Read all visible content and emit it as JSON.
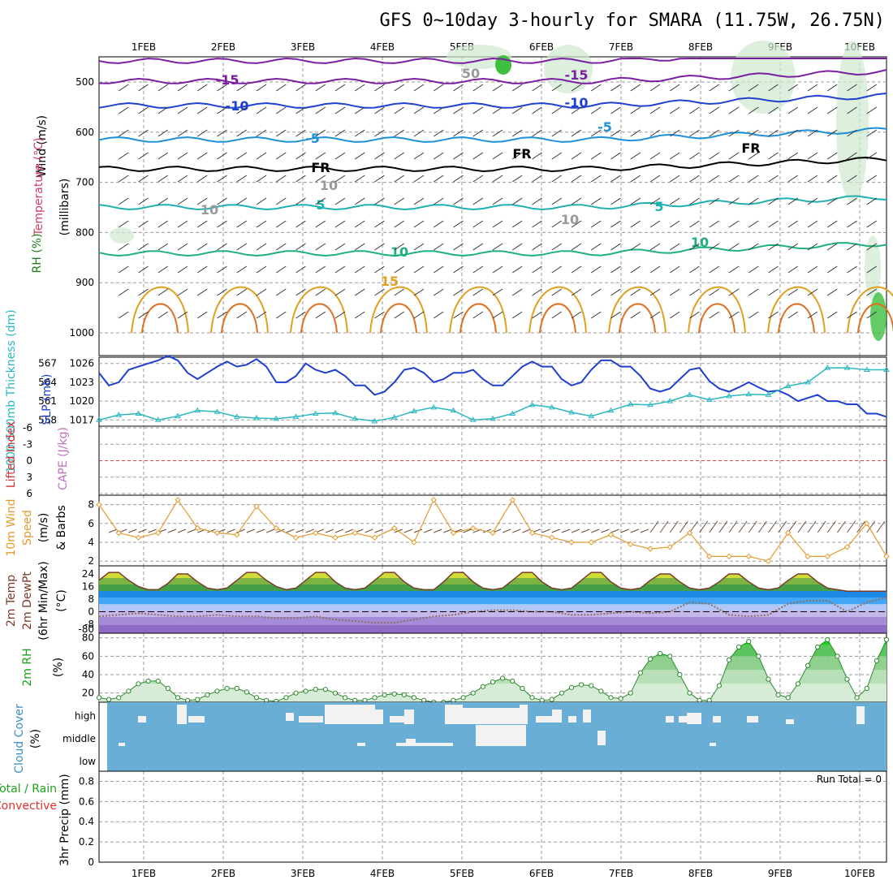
{
  "title": "GFS 0~10day 3-hourly for SMARA (11.75W, 26.75N)",
  "colors": {
    "grid": "#9a9a9a",
    "slp": "#1f3fd0",
    "thickness": "#2cb8c0",
    "wind_speed": "#e39a2e",
    "barb": "#6b4a3a",
    "temp_line": "#7a3a2a",
    "rh_line": "#2c8a2c",
    "cloud_fill": "#6aaed6",
    "cloud_clear": "#f2f2f2",
    "lifted_zero": "#e04040"
  },
  "date_labels": [
    "1FEB",
    "2FEB",
    "3FEB",
    "4FEB",
    "5FEB",
    "6FEB",
    "7FEB",
    "8FEB",
    "9FEB",
    "10FEB"
  ],
  "panels": {
    "upper_air": {
      "ylabel_lines": [
        "Wind (m/s)",
        "Temperature (°C)",
        "(millibars)",
        "RH (%)"
      ],
      "ticks": [
        "500",
        "600",
        "700",
        "800",
        "900",
        "1000"
      ],
      "contour_labels": [
        {
          "text": "-15",
          "color": "#7b1fa2"
        },
        {
          "text": "-15",
          "color": "#7b1fa2"
        },
        {
          "text": "-10",
          "color": "#2040d0"
        },
        {
          "text": "-10",
          "color": "#2040d0"
        },
        {
          "text": "-5",
          "color": "#1e90d8"
        },
        {
          "text": "-5",
          "color": "#1e90d8"
        },
        {
          "text": "FR",
          "color": "#000000"
        },
        {
          "text": "FR",
          "color": "#000000"
        },
        {
          "text": "FR",
          "color": "#000000"
        },
        {
          "text": "5",
          "color": "#20b0b0"
        },
        {
          "text": "5",
          "color": "#20b0b0"
        },
        {
          "text": "10",
          "color": "#20b080"
        },
        {
          "text": "10",
          "color": "#20b080"
        },
        {
          "text": "15",
          "color": "#e0a020"
        },
        {
          "text": "10",
          "color": "#999999"
        },
        {
          "text": "10",
          "color": "#999999"
        },
        {
          "text": "10",
          "color": "#999999"
        },
        {
          "text": "50",
          "color": "#999999"
        }
      ]
    },
    "pressure": {
      "ylabel_left": "1000-500mb Thickness (dm)",
      "ylabel_right": "SLP (mb)",
      "left_ticks": [
        "567",
        "564",
        "561",
        "558"
      ],
      "right_ticks": [
        "1026",
        "1023",
        "1020",
        "1017"
      ]
    },
    "stability": {
      "ylabel_left": "Lifted Index",
      "ylabel_right": "CAPE (J/kg)",
      "left_ticks": [
        "-6",
        "-3",
        "0",
        "3",
        "6"
      ]
    },
    "wind10m": {
      "ylabel_lines": [
        "10m Wind",
        "Speed",
        "(m/s)",
        "& Barbs"
      ],
      "ticks": [
        "8",
        "6",
        "4",
        "2"
      ]
    },
    "temp2m": {
      "ylabel_lines": [
        "2m Temp",
        "2m DewPt",
        "(6hr Min/Max)",
        "(°C)"
      ],
      "ticks": [
        "24",
        "16",
        "8",
        "0",
        "-8",
        "-80"
      ]
    },
    "rh2m": {
      "ylabel_lines": [
        "2m RH",
        "(%)"
      ],
      "ticks": [
        "80",
        "60",
        "40",
        "20"
      ]
    },
    "cloud": {
      "ylabel_lines": [
        "Cloud Cover",
        "(%)"
      ],
      "layers": [
        "high",
        "middle",
        "low"
      ]
    },
    "precip": {
      "ylabel_lines": [
        "Total / Rain",
        "Convective",
        "3hr Precip (mm)"
      ],
      "ticks": [
        "0.8",
        "0.6",
        "0.4",
        "0.2",
        "0"
      ],
      "run_total": "Run Total = 0"
    }
  },
  "chart_data": [
    {
      "type": "line",
      "name": "SLP",
      "x_label": "date",
      "y_unit": "mb",
      "ylim": [
        1016,
        1027
      ],
      "x": [
        0,
        1,
        2,
        3,
        4,
        5,
        6,
        7,
        8,
        9,
        10,
        11,
        12,
        13,
        14,
        15,
        16,
        17,
        18,
        19,
        20,
        21,
        22,
        23,
        24,
        25,
        26,
        27,
        28,
        29,
        30,
        31,
        32,
        33,
        34,
        35,
        36,
        37,
        38,
        39,
        40,
        41,
        42,
        43,
        44,
        45,
        46,
        47,
        48,
        49,
        50,
        51,
        52,
        53,
        54,
        55,
        56,
        57,
        58,
        59,
        60,
        61,
        62,
        63,
        64,
        65,
        66,
        67,
        68,
        69,
        70,
        71,
        72,
        73,
        74,
        75,
        76,
        77,
        78,
        79,
        80
      ],
      "values": [
        1024.5,
        1022.5,
        1023,
        1025,
        1025.5,
        1026,
        1026.5,
        1027.2,
        1026.5,
        1024.5,
        1023.5,
        1024.5,
        1025.5,
        1026.3,
        1025.5,
        1025.8,
        1026.7,
        1025.5,
        1023,
        1023,
        1024,
        1026,
        1025,
        1024.5,
        1025,
        1024,
        1022.5,
        1022.5,
        1021,
        1021.5,
        1023,
        1025,
        1025.3,
        1024.5,
        1023,
        1023.5,
        1024.5,
        1024.5,
        1025,
        1023.5,
        1022.5,
        1022.5,
        1024,
        1025.5,
        1026.3,
        1025.5,
        1025.5,
        1023.5,
        1022.5,
        1023,
        1025,
        1026.5,
        1026.5,
        1025.5,
        1025.5,
        1024,
        1022,
        1021.5,
        1022,
        1023.5,
        1025,
        1025.3,
        1023.2,
        1022,
        1021.5,
        1022.2,
        1023,
        1022.2,
        1021.5,
        1021.7,
        1021,
        1020,
        1020.5,
        1021,
        1020,
        1020,
        1019.5,
        1019.5,
        1018,
        1018,
        1017.5
      ]
    },
    {
      "type": "line",
      "name": "1000-500mb Thickness",
      "y_unit": "dm",
      "ylim": [
        557,
        568
      ],
      "x": [
        0,
        2,
        4,
        6,
        8,
        10,
        12,
        14,
        16,
        18,
        20,
        22,
        24,
        26,
        28,
        30,
        32,
        34,
        36,
        38,
        40,
        42,
        44,
        46,
        48,
        50,
        52,
        54,
        56,
        58,
        60,
        62,
        64,
        66,
        68,
        70,
        72,
        74,
        76,
        78,
        80
      ],
      "values": [
        558,
        558.8,
        559,
        558,
        558.6,
        559.5,
        559.3,
        558.5,
        558.3,
        558.2,
        558.5,
        559,
        559.1,
        558.2,
        557.8,
        558.4,
        559.4,
        560,
        559.5,
        558,
        558.2,
        559,
        560.4,
        560,
        559.2,
        558.6,
        559.5,
        560.5,
        560.4,
        561,
        562,
        561.2,
        561.8,
        562.1,
        562,
        563.4,
        564,
        566.3,
        566.3,
        566,
        566
      ]
    },
    {
      "type": "line",
      "name": "10m Wind Speed",
      "y_unit": "m/s",
      "ylim": [
        1.5,
        9
      ],
      "x": [
        0,
        2,
        4,
        6,
        8,
        10,
        12,
        14,
        16,
        18,
        20,
        22,
        24,
        26,
        28,
        30,
        32,
        34,
        36,
        38,
        40,
        42,
        44,
        46,
        48,
        50,
        52,
        54,
        56,
        58,
        60,
        62,
        64,
        66,
        68,
        70,
        72,
        74,
        76,
        78,
        80
      ],
      "values": [
        8,
        5,
        4.5,
        5,
        8.5,
        5.5,
        5,
        4.8,
        7.8,
        5.5,
        4.5,
        5,
        4.5,
        5,
        4.5,
        5.5,
        4,
        8.5,
        5,
        5.5,
        5,
        8.5,
        5,
        4.5,
        4,
        4,
        4.8,
        3.8,
        3.3,
        3.5,
        5,
        2.5,
        2.5,
        2.5,
        2,
        5,
        2.5,
        2.5,
        3.5,
        6,
        2.5
      ]
    },
    {
      "type": "line",
      "name": "2m RH",
      "y_unit": "%",
      "ylim": [
        10,
        85
      ],
      "x": [
        0,
        1,
        2,
        3,
        4,
        5,
        6,
        7,
        8,
        9,
        10,
        11,
        12,
        13,
        14,
        15,
        16,
        17,
        18,
        19,
        20,
        21,
        22,
        23,
        24,
        25,
        26,
        27,
        28,
        29,
        30,
        31,
        32,
        33,
        34,
        35,
        36,
        37,
        38,
        39,
        40,
        41,
        42,
        43,
        44,
        45,
        46,
        47,
        48,
        49,
        50,
        51,
        52,
        53,
        54,
        55,
        56,
        57,
        58,
        59,
        60,
        61,
        62,
        63,
        64,
        65,
        66,
        67,
        68,
        69,
        70,
        71,
        72,
        73,
        74,
        75,
        76,
        77,
        78,
        79,
        80
      ],
      "values": [
        15,
        13,
        15,
        22,
        30,
        33,
        33,
        25,
        15,
        12,
        13,
        18,
        22,
        25,
        25,
        21,
        15,
        12,
        11,
        15,
        20,
        22,
        24,
        24,
        20,
        15,
        12,
        12,
        15,
        18,
        19,
        18,
        15,
        12,
        10,
        10,
        12,
        15,
        20,
        27,
        32,
        36,
        33,
        25,
        15,
        12,
        13,
        20,
        26,
        29,
        28,
        22,
        15,
        14,
        20,
        42,
        57,
        63,
        60,
        40,
        20,
        12,
        12,
        28,
        56,
        70,
        76,
        60,
        35,
        18,
        15,
        30,
        50,
        70,
        78,
        60,
        35,
        15,
        25,
        55,
        78
      ]
    },
    {
      "type": "area",
      "name": "2m Temp",
      "y_unit": "°C",
      "ylim": [
        -10,
        28
      ],
      "x": [
        0,
        1,
        2,
        3,
        4,
        5,
        6,
        7,
        8,
        9,
        10,
        11,
        12,
        13,
        14,
        15,
        16,
        17,
        18,
        19,
        20,
        21,
        22,
        23,
        24,
        25,
        26,
        27,
        28,
        29,
        30,
        31,
        32,
        33,
        34,
        35,
        36,
        37,
        38,
        39,
        40,
        41,
        42,
        43,
        44,
        45,
        46,
        47,
        48,
        49,
        50,
        51,
        52,
        53,
        54,
        55,
        56,
        57,
        58,
        59,
        60,
        61,
        62,
        63,
        64,
        65,
        66,
        67,
        68,
        69,
        70,
        71,
        72,
        73,
        74,
        75,
        76,
        77,
        78,
        79,
        80
      ],
      "values": [
        20,
        25,
        25,
        20,
        16,
        14,
        14,
        18,
        24,
        24,
        19,
        15,
        14,
        15,
        20,
        25,
        25,
        20,
        16,
        14,
        15,
        20,
        25,
        25,
        19,
        15,
        14,
        15,
        20,
        25,
        25,
        19,
        15,
        14,
        14,
        19,
        25,
        25,
        19,
        15,
        14,
        15,
        20,
        25,
        25,
        19,
        15,
        14,
        15,
        20,
        25,
        25,
        19,
        15,
        14,
        15,
        20,
        24,
        24,
        19,
        15,
        14,
        15,
        19,
        24,
        24,
        19,
        15,
        14,
        15,
        20,
        24,
        24,
        19,
        15,
        14,
        13,
        13,
        13,
        13,
        13
      ]
    },
    {
      "type": "line",
      "name": "2m DewPt",
      "y_unit": "°C",
      "ylim": [
        -10,
        28
      ],
      "x": [
        0,
        2,
        4,
        6,
        8,
        10,
        12,
        14,
        16,
        18,
        20,
        22,
        24,
        26,
        28,
        30,
        32,
        34,
        36,
        38,
        40,
        42,
        44,
        46,
        48,
        50,
        52,
        54,
        56,
        58,
        60,
        62,
        64,
        66,
        68,
        70,
        72,
        74,
        76,
        78,
        80
      ],
      "values": [
        -3,
        -2,
        -1,
        -2,
        -3,
        -3,
        -2,
        -3,
        -3,
        -4,
        -4,
        -3,
        -5,
        -6,
        -7,
        -7,
        -5,
        -3,
        -2,
        0,
        1,
        1,
        0,
        0,
        -2,
        -2,
        -1,
        0,
        -1,
        0,
        6,
        5,
        -2,
        -3,
        -2,
        5,
        7,
        7,
        0,
        6,
        9
      ]
    },
    {
      "type": "heatmap",
      "name": "Cloud Cover",
      "rows": [
        "high",
        "middle",
        "low"
      ],
      "values": "mostly covered (100%) with scattered clear segments"
    },
    {
      "type": "bar",
      "name": "3hr Precip",
      "y_unit": "mm",
      "ylim": [
        0,
        0.9
      ],
      "values": [
        0
      ]
    }
  ]
}
